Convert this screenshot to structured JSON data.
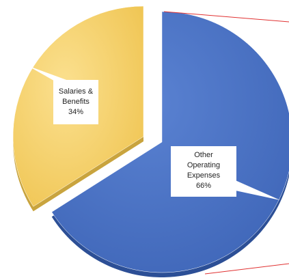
{
  "chart_data": {
    "type": "pie",
    "values": [
      34,
      66
    ],
    "value_labels": [
      "Salaries & Benefits 34%",
      "Other Operating Expenses 66%"
    ],
    "colors": [
      "#f6d26a",
      "#4a71c3"
    ]
  }
}
